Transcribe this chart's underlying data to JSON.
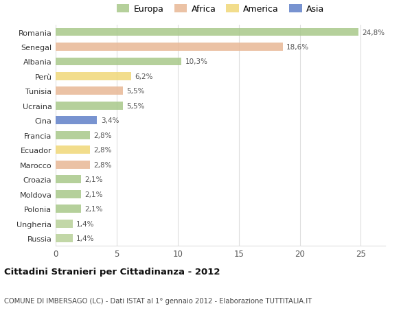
{
  "countries": [
    "Romania",
    "Senegal",
    "Albania",
    "Perù",
    "Tunisia",
    "Ucraina",
    "Cina",
    "Francia",
    "Ecuador",
    "Marocco",
    "Croazia",
    "Moldova",
    "Polonia",
    "Ungheria",
    "Russia"
  ],
  "values": [
    24.8,
    18.6,
    10.3,
    6.2,
    5.5,
    5.5,
    3.4,
    2.8,
    2.8,
    2.8,
    2.1,
    2.1,
    2.1,
    1.4,
    1.4
  ],
  "labels": [
    "24,8%",
    "18,6%",
    "10,3%",
    "6,2%",
    "5,5%",
    "5,5%",
    "3,4%",
    "2,8%",
    "2,8%",
    "2,8%",
    "2,1%",
    "2,1%",
    "2,1%",
    "1,4%",
    "1,4%"
  ],
  "colors": [
    "#a8c88a",
    "#e8b896",
    "#a8c88a",
    "#f0d878",
    "#e8b896",
    "#a8c88a",
    "#6080c8",
    "#a8c88a",
    "#f0d878",
    "#e8b896",
    "#a8c88a",
    "#a8c88a",
    "#a8c88a",
    "#b8d098",
    "#b8d098"
  ],
  "legend_labels": [
    "Europa",
    "Africa",
    "America",
    "Asia"
  ],
  "legend_colors": [
    "#a8c88a",
    "#e8b896",
    "#f0d878",
    "#6080c8"
  ],
  "title": "Cittadini Stranieri per Cittadinanza - 2012",
  "subtitle": "COMUNE DI IMBERSAGO (LC) - Dati ISTAT al 1° gennaio 2012 - Elaborazione TUTTITALIA.IT",
  "xlim": [
    0,
    27
  ],
  "xticks": [
    0,
    5,
    10,
    15,
    20,
    25
  ],
  "bg_color": "#ffffff",
  "plot_bg_color": "#ffffff",
  "grid_color": "#dddddd",
  "bar_height": 0.55
}
